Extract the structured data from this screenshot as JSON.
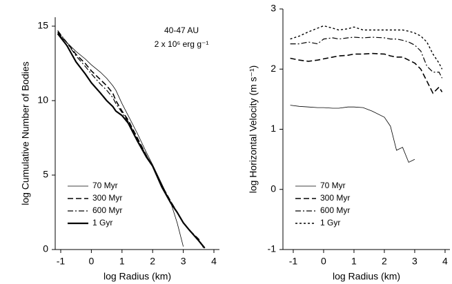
{
  "chart_data": [
    {
      "type": "line",
      "ylabel": "log Cumulative Number of Bodies",
      "xlabel": "log Radius (km)",
      "annotations": [
        "40-47 AU",
        "2 x 10⁶ erg g⁻¹"
      ],
      "xlim": [
        -1.18,
        4.18
      ],
      "xticks": [
        -1,
        0,
        1,
        2,
        3,
        4
      ],
      "ylim": [
        0,
        15.6
      ],
      "yticks": [
        0,
        5,
        10,
        15
      ],
      "grid": false,
      "legend": "lower left",
      "x": [
        -1.1,
        -0.8,
        -0.5,
        -0.2,
        0,
        0.3,
        0.5,
        0.7,
        0.8,
        1,
        1.2,
        1.5,
        1.8,
        2,
        2.3,
        2.6,
        2.8,
        3,
        3.2,
        3.5,
        3.7
      ],
      "series": [
        {
          "name": "70 Myr",
          "color": "#000000",
          "dash": "solid",
          "width": 0.8,
          "values": [
            14.5,
            13.9,
            13.3,
            12.8,
            12.4,
            11.9,
            11.5,
            11.0,
            10.7,
            9.8,
            9.0,
            7.8,
            6.5,
            5.7,
            4.4,
            3.1,
            1.8,
            0.2,
            null,
            null,
            null
          ]
        },
        {
          "name": "300 Myr",
          "color": "#000000",
          "dash": "dashed",
          "width": 1.6,
          "values": [
            14.6,
            13.9,
            13.1,
            12.5,
            12.0,
            11.4,
            11.0,
            10.5,
            10.0,
            9.3,
            8.7,
            7.5,
            6.3,
            5.6,
            4.3,
            3.2,
            2.5,
            1.8,
            1.3,
            0.7,
            0
          ]
        },
        {
          "name": "600 Myr",
          "color": "#000000",
          "dash": "dashdot",
          "width": 1.2,
          "values": [
            14.7,
            13.9,
            13.0,
            12.3,
            11.8,
            11.1,
            10.7,
            10.2,
            9.8,
            9.2,
            8.6,
            7.4,
            6.3,
            5.6,
            4.3,
            3.2,
            2.5,
            1.8,
            1.3,
            0.6,
            0
          ]
        },
        {
          "name": "1 Gyr",
          "color": "#000000",
          "dash": "solid",
          "width": 2.2,
          "values": [
            14.5,
            13.7,
            12.6,
            11.8,
            11.2,
            10.5,
            10.0,
            9.6,
            9.3,
            9.0,
            8.5,
            7.3,
            6.2,
            5.6,
            4.2,
            3.1,
            2.5,
            1.8,
            1.3,
            0.6,
            0.1
          ]
        }
      ]
    },
    {
      "type": "line",
      "ylabel": "log Horizontal Velocity (m s⁻¹)",
      "xlabel": "log Radius (km)",
      "xlim": [
        -1.34,
        4.16
      ],
      "xticks": [
        -1,
        0,
        1,
        2,
        3,
        4
      ],
      "ylim": [
        -1,
        3
      ],
      "yticks": [
        -1,
        0,
        1,
        2,
        3
      ],
      "grid": false,
      "legend": "lower left",
      "x": [
        -1.1,
        -0.8,
        -0.5,
        -0.2,
        0,
        0.3,
        0.5,
        0.8,
        1,
        1.3,
        1.6,
        2,
        2.2,
        2.4,
        2.6,
        2.8,
        3,
        3.2,
        3.4,
        3.6,
        3.8,
        3.9
      ],
      "series": [
        {
          "name": "70 Myr",
          "color": "#000000",
          "dash": "solid",
          "width": 0.8,
          "values": [
            1.4,
            1.38,
            1.37,
            1.36,
            1.36,
            1.35,
            1.35,
            1.37,
            1.37,
            1.36,
            1.3,
            1.2,
            1.05,
            0.65,
            0.7,
            0.45,
            0.5,
            null,
            null,
            null,
            null,
            null
          ]
        },
        {
          "name": "300 Myr",
          "color": "#000000",
          "dash": "dashed",
          "width": 1.6,
          "values": [
            2.18,
            2.15,
            2.13,
            2.15,
            2.17,
            2.2,
            2.22,
            2.23,
            2.25,
            2.25,
            2.26,
            2.25,
            2.22,
            2.2,
            2.2,
            2.15,
            2.1,
            2.0,
            1.8,
            1.6,
            1.7,
            1.62
          ]
        },
        {
          "name": "600 Myr",
          "color": "#000000",
          "dash": "dashdot",
          "width": 1.2,
          "values": [
            2.42,
            2.42,
            2.45,
            2.42,
            2.5,
            2.52,
            2.5,
            2.52,
            2.53,
            2.52,
            2.53,
            2.52,
            2.5,
            2.5,
            2.48,
            2.45,
            2.4,
            2.3,
            2.05,
            1.95,
            1.95,
            1.85
          ]
        },
        {
          "name": "1 Gyr",
          "color": "#000000",
          "dash": "dotted",
          "width": 1.4,
          "values": [
            2.5,
            2.55,
            2.62,
            2.68,
            2.72,
            2.68,
            2.65,
            2.67,
            2.7,
            2.65,
            2.65,
            2.65,
            2.65,
            2.65,
            2.65,
            2.63,
            2.6,
            2.55,
            2.45,
            2.25,
            2.1,
            2.0
          ]
        }
      ]
    }
  ]
}
